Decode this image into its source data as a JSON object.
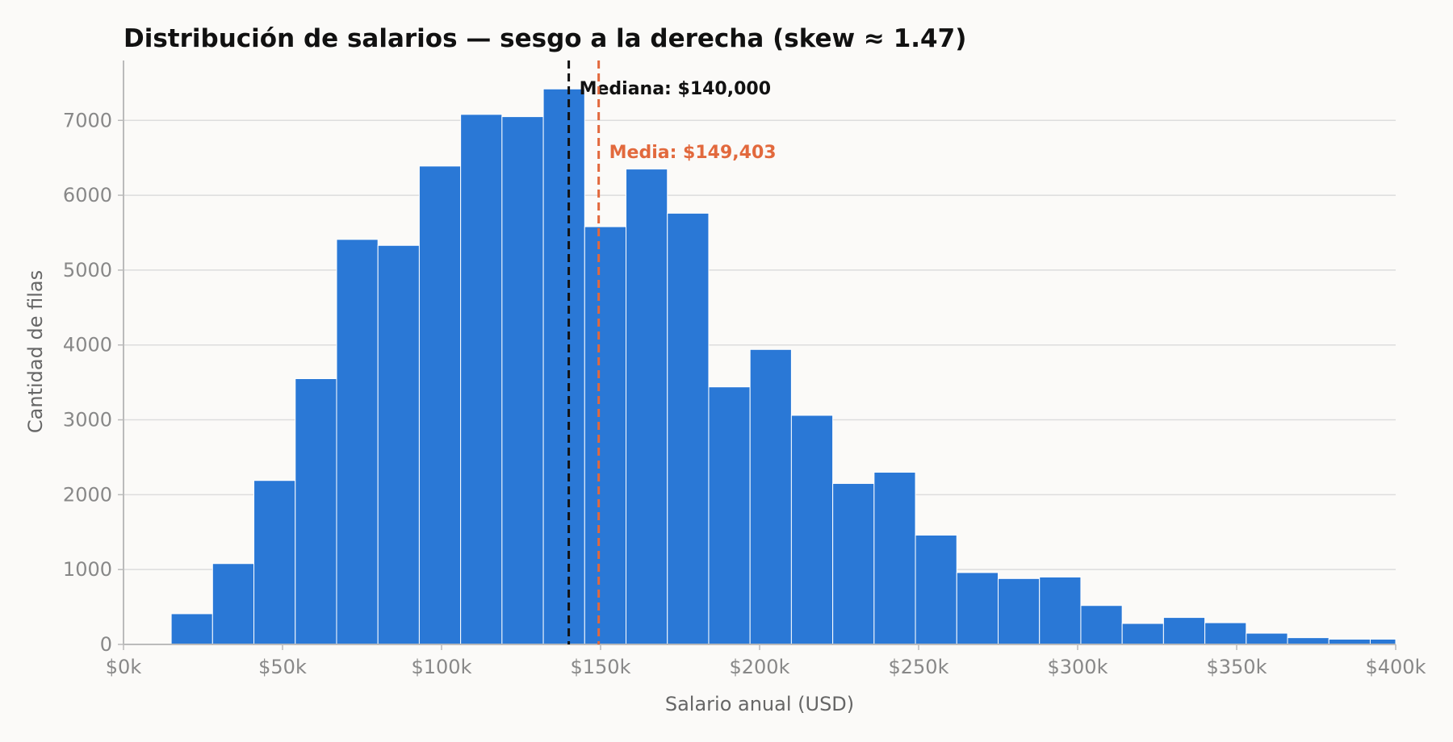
{
  "chart_data": {
    "type": "bar",
    "title": "Distribución de salarios — sesgo a la derecha (skew ≈ 1.47)",
    "xlabel": "Salario anual (USD)",
    "ylabel": "Cantidad de filas",
    "xlim": [
      0,
      400000
    ],
    "ylim": [
      0,
      7800
    ],
    "bin_width": 13000,
    "bins_start": 15000,
    "values": [
      410,
      1080,
      2190,
      3550,
      5410,
      5330,
      6390,
      7080,
      7050,
      7420,
      5580,
      6350,
      5760,
      3440,
      3940,
      3060,
      2150,
      2300,
      1460,
      960,
      880,
      900,
      520,
      280,
      360,
      290,
      150,
      90,
      70,
      70
    ],
    "x_ticks": [
      0,
      50000,
      100000,
      150000,
      200000,
      250000,
      300000,
      350000,
      400000
    ],
    "x_tick_labels": [
      "$0k",
      "$50k",
      "$100k",
      "$150k",
      "$200k",
      "$250k",
      "$300k",
      "$350k",
      "$400k"
    ],
    "y_ticks": [
      0,
      1000,
      2000,
      3000,
      4000,
      5000,
      6000,
      7000
    ],
    "y_tick_labels": [
      "0",
      "1000",
      "2000",
      "3000",
      "4000",
      "5000",
      "6000",
      "7000"
    ],
    "grid": "horizontal",
    "annotations": [
      {
        "label": "Mediana: $140,000",
        "x": 140000,
        "color": "#111111",
        "style": "dashed"
      },
      {
        "label": "Media: $149,403",
        "x": 149403,
        "color": "#e2693d",
        "style": "dashed"
      }
    ]
  },
  "colors": {
    "bar": "#2a78d6",
    "bar_edge": "#ffffff",
    "grid": "#dddddd",
    "axis": "#bbbbbb",
    "median": "#111111",
    "mean": "#e2693d"
  }
}
